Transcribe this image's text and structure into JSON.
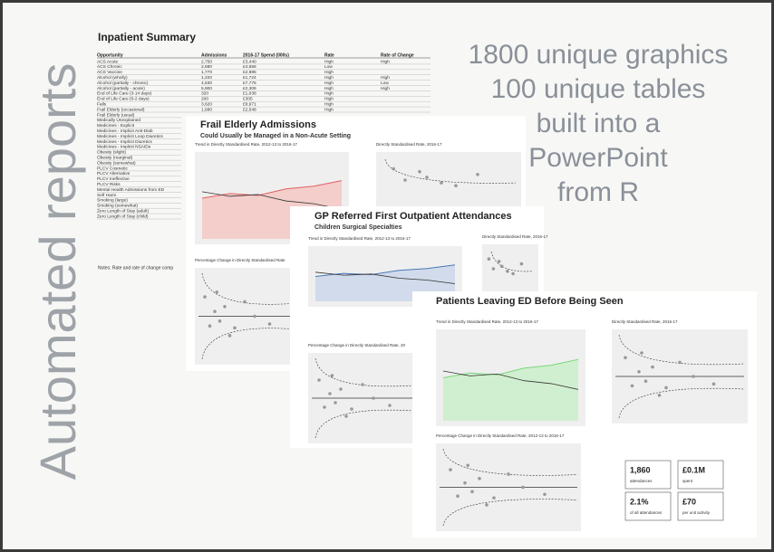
{
  "side_title": "Automated reports",
  "headline": [
    "1800 unique graphics",
    "100 unique tables",
    "built into a",
    "PowerPoint",
    "from R"
  ],
  "summary": {
    "title": "Inpatient Summary",
    "columns": [
      "Opportunity",
      "Admissions",
      "2016-17 Spend (000s)",
      "Rate",
      "Rate of Change"
    ],
    "rows": [
      [
        "ACS Acute",
        "2,750",
        "£3,440",
        "High",
        "High"
      ],
      [
        "ACS Chronic",
        "2,680",
        "£4,656",
        "Low"
      ],
      [
        "ACS Vaccine",
        "1,770",
        "£2,985",
        "High"
      ],
      [
        "Alcohol (wholly)",
        "1,220",
        "£1,724",
        "High",
        "High"
      ],
      [
        "Alcohol (partially - chronic)",
        "4,630",
        "£7,775",
        "High",
        "Low"
      ],
      [
        "Alcohol (partially - acute)",
        "5,900",
        "£2,306",
        "High",
        "High"
      ],
      [
        "End of Life Care (3-14 days)",
        "320",
        "£1,038",
        "High"
      ],
      [
        "End of Life Care (0-2 days)",
        "200",
        "£305",
        "High"
      ],
      [
        "Falls",
        "3,620",
        "£8,971",
        "High"
      ],
      [
        "Frail Elderly (occasional)",
        "1,680",
        "£2,548",
        "High"
      ],
      [
        "Frail Elderly (usual)"
      ],
      [
        "Medically Unexplained"
      ],
      [
        "Medicines - Explicit"
      ],
      [
        "Medicines - Implicit Anti-Diab"
      ],
      [
        "Medicines - Implicit Loop Diuretics"
      ],
      [
        "Medicines - Implicit Diuretics"
      ],
      [
        "Medicines - Implicit NSAIDs"
      ],
      [
        "Obesity (slight)"
      ],
      [
        "Obesity (marginal)"
      ],
      [
        "Obesity (somewhat)"
      ],
      [
        "PLCV Cosmetic"
      ],
      [
        "PLCV Alternative"
      ],
      [
        "PLCV Ineffective"
      ],
      [
        "PLCV Risks"
      ],
      [
        "Mental Health Admissions from ED"
      ],
      [
        "Self Harm"
      ],
      [
        "Smoking (large)"
      ],
      [
        "Smoking (somewhat)"
      ],
      [
        "Zero Length of Stay (adult)"
      ],
      [
        "Zero Length of Stay (child)"
      ]
    ],
    "notes": "Notes: Rate and rate of change comp"
  },
  "pages": [
    {
      "title": "Frail Elderly Admissions",
      "subtitle": "Could Usually be Managed  in a Non-Acute Setting",
      "panels": [
        "Trend in Directly Standardised Rate, 2012-13 to 2016-17",
        "Directly Standardised Rate, 2016-17",
        "Percentage Change in Directly Standardised Rate"
      ]
    },
    {
      "title": "GP Referred First Outpatient Attendances",
      "subtitle": "Children Surgical Specialties",
      "panels": [
        "Trend in Directly Standardised Rate, 2012-13 to 2016-17",
        "Directly Standardised Rate, 2016-17",
        "Percentage Change in Directly Standardised Rate, 20"
      ]
    },
    {
      "title": "Patients Leaving ED Before Being Seen",
      "panels": [
        "Trend in Directly Standardised Rate, 2012-13 to 2016-17",
        "Directly Standardised Rate, 2016-17",
        "Percentage Change in Directly Standardised Rate, 2012-13 to 2016-17"
      ]
    }
  ],
  "stats": [
    {
      "value": "1,860",
      "label": "attendances"
    },
    {
      "value": "£0.1M",
      "label": "spent"
    },
    {
      "value": "2.1%",
      "label": "of all attendances"
    },
    {
      "value": "£70",
      "label": "per unit activity"
    }
  ]
}
